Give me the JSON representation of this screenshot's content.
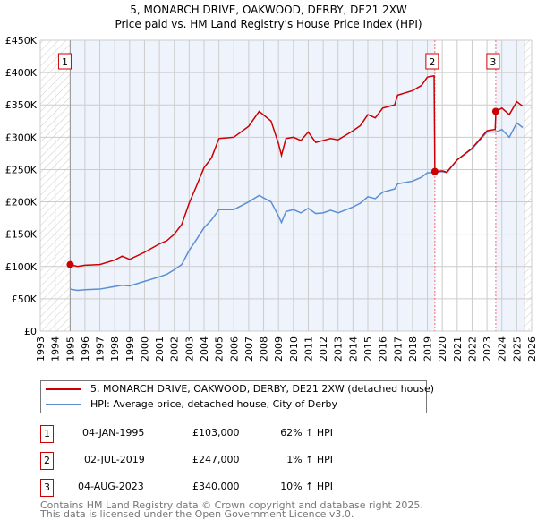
{
  "chart_data": {
    "type": "line",
    "title": "5, MONARCH DRIVE, OAKWOOD, DERBY, DE21 2XW",
    "subtitle": "Price paid vs. HM Land Registry's House Price Index (HPI)",
    "xlim": [
      1993,
      2026
    ],
    "ylim": [
      0,
      450000
    ],
    "x_ticks": [
      "1993",
      "1994",
      "1995",
      "1996",
      "1997",
      "1998",
      "1999",
      "2000",
      "2001",
      "2002",
      "2003",
      "2004",
      "2005",
      "2006",
      "2007",
      "2008",
      "2009",
      "2010",
      "2011",
      "2012",
      "2013",
      "2014",
      "2015",
      "2016",
      "2017",
      "2018",
      "2019",
      "2020",
      "2021",
      "2022",
      "2023",
      "2024",
      "2025",
      "2026"
    ],
    "y_ticks": [
      {
        "v": 0,
        "label": "£0"
      },
      {
        "v": 50000,
        "label": "£50K"
      },
      {
        "v": 100000,
        "label": "£100K"
      },
      {
        "v": 150000,
        "label": "£150K"
      },
      {
        "v": 200000,
        "label": "£200K"
      },
      {
        "v": 250000,
        "label": "£250K"
      },
      {
        "v": 300000,
        "label": "£300K"
      },
      {
        "v": 350000,
        "label": "£350K"
      },
      {
        "v": 400000,
        "label": "£400K"
      },
      {
        "v": 450000,
        "label": "£450K"
      }
    ],
    "grid": true,
    "series": [
      {
        "name": "5, MONARCH DRIVE, OAKWOOD, DERBY, DE21 2XW (detached house)",
        "color": "#cc0000",
        "x": [
          1995,
          1995.5,
          1996,
          1997,
          1998,
          1998.5,
          1999,
          2000,
          2001,
          2001.5,
          2002,
          2002.5,
          2003,
          2003.5,
          2004,
          2004.5,
          2005,
          2006,
          2007,
          2007.7,
          2008.5,
          2009,
          2009.2,
          2009.5,
          2010,
          2010.5,
          2011,
          2011.5,
          2012,
          2012.5,
          2013,
          2014,
          2014.5,
          2015,
          2015.5,
          2016,
          2016.8,
          2017,
          2018,
          2018.6,
          2019,
          2019.45,
          2019.5,
          2020,
          2020.3,
          2021,
          2022,
          2023,
          2023.55,
          2023.6,
          2024,
          2024.5,
          2025,
          2025.4
        ],
        "y": [
          103000,
          100000,
          102000,
          103000,
          110000,
          116000,
          111000,
          122000,
          135000,
          140000,
          150000,
          165000,
          198000,
          225000,
          253000,
          268000,
          298000,
          300000,
          317000,
          340000,
          325000,
          290000,
          272000,
          298000,
          300000,
          295000,
          308000,
          292000,
          295000,
          298000,
          296000,
          310000,
          318000,
          335000,
          330000,
          345000,
          350000,
          365000,
          372000,
          380000,
          393000,
          395000,
          247000,
          248000,
          246000,
          265000,
          283000,
          310000,
          312000,
          340000,
          345000,
          335000,
          355000,
          348000
        ]
      },
      {
        "name": "HPI: Average price, detached house, City of Derby",
        "color": "#5b8fd4",
        "x": [
          1995,
          1995.5,
          1996,
          1997,
          1998,
          1998.5,
          1999,
          2000,
          2001,
          2001.5,
          2002,
          2002.5,
          2003,
          2003.5,
          2004,
          2004.5,
          2005,
          2006,
          2007,
          2007.7,
          2008.5,
          2009,
          2009.2,
          2009.5,
          2010,
          2010.5,
          2011,
          2011.5,
          2012,
          2012.5,
          2013,
          2014,
          2014.5,
          2015,
          2015.5,
          2016,
          2016.8,
          2017,
          2018,
          2018.6,
          2019,
          2019.5,
          2020,
          2020.3,
          2021,
          2022,
          2023,
          2023.6,
          2024,
          2024.5,
          2025,
          2025.4
        ],
        "y": [
          65000,
          63000,
          64000,
          65000,
          69000,
          71000,
          70000,
          77000,
          84000,
          88000,
          95000,
          103000,
          125000,
          142000,
          160000,
          172000,
          188000,
          188000,
          200000,
          210000,
          200000,
          178000,
          168000,
          185000,
          188000,
          183000,
          190000,
          182000,
          183000,
          187000,
          183000,
          192000,
          198000,
          208000,
          205000,
          215000,
          220000,
          228000,
          232000,
          238000,
          245000,
          245000,
          247000,
          245000,
          265000,
          282000,
          308000,
          308000,
          312000,
          300000,
          322000,
          315000
        ]
      }
    ],
    "sales": [
      {
        "n": "1",
        "date": "04-JAN-1995",
        "x": 1995.01,
        "price": "£103,000",
        "value": 103000,
        "hpi": "62% ↑ HPI"
      },
      {
        "n": "2",
        "date": "02-JUL-2019",
        "x": 2019.5,
        "price": "£247,000",
        "value": 247000,
        "hpi": "1% ↑ HPI"
      },
      {
        "n": "3",
        "date": "04-AUG-2023",
        "x": 2023.59,
        "price": "£340,000",
        "value": 340000,
        "hpi": "10% ↑ HPI"
      }
    ],
    "data_end": 2025.5
  },
  "footer": {
    "line1": "Contains HM Land Registry data © Crown copyright and database right 2025.",
    "line2": "This data is licensed under the Open Government Licence v3.0."
  }
}
